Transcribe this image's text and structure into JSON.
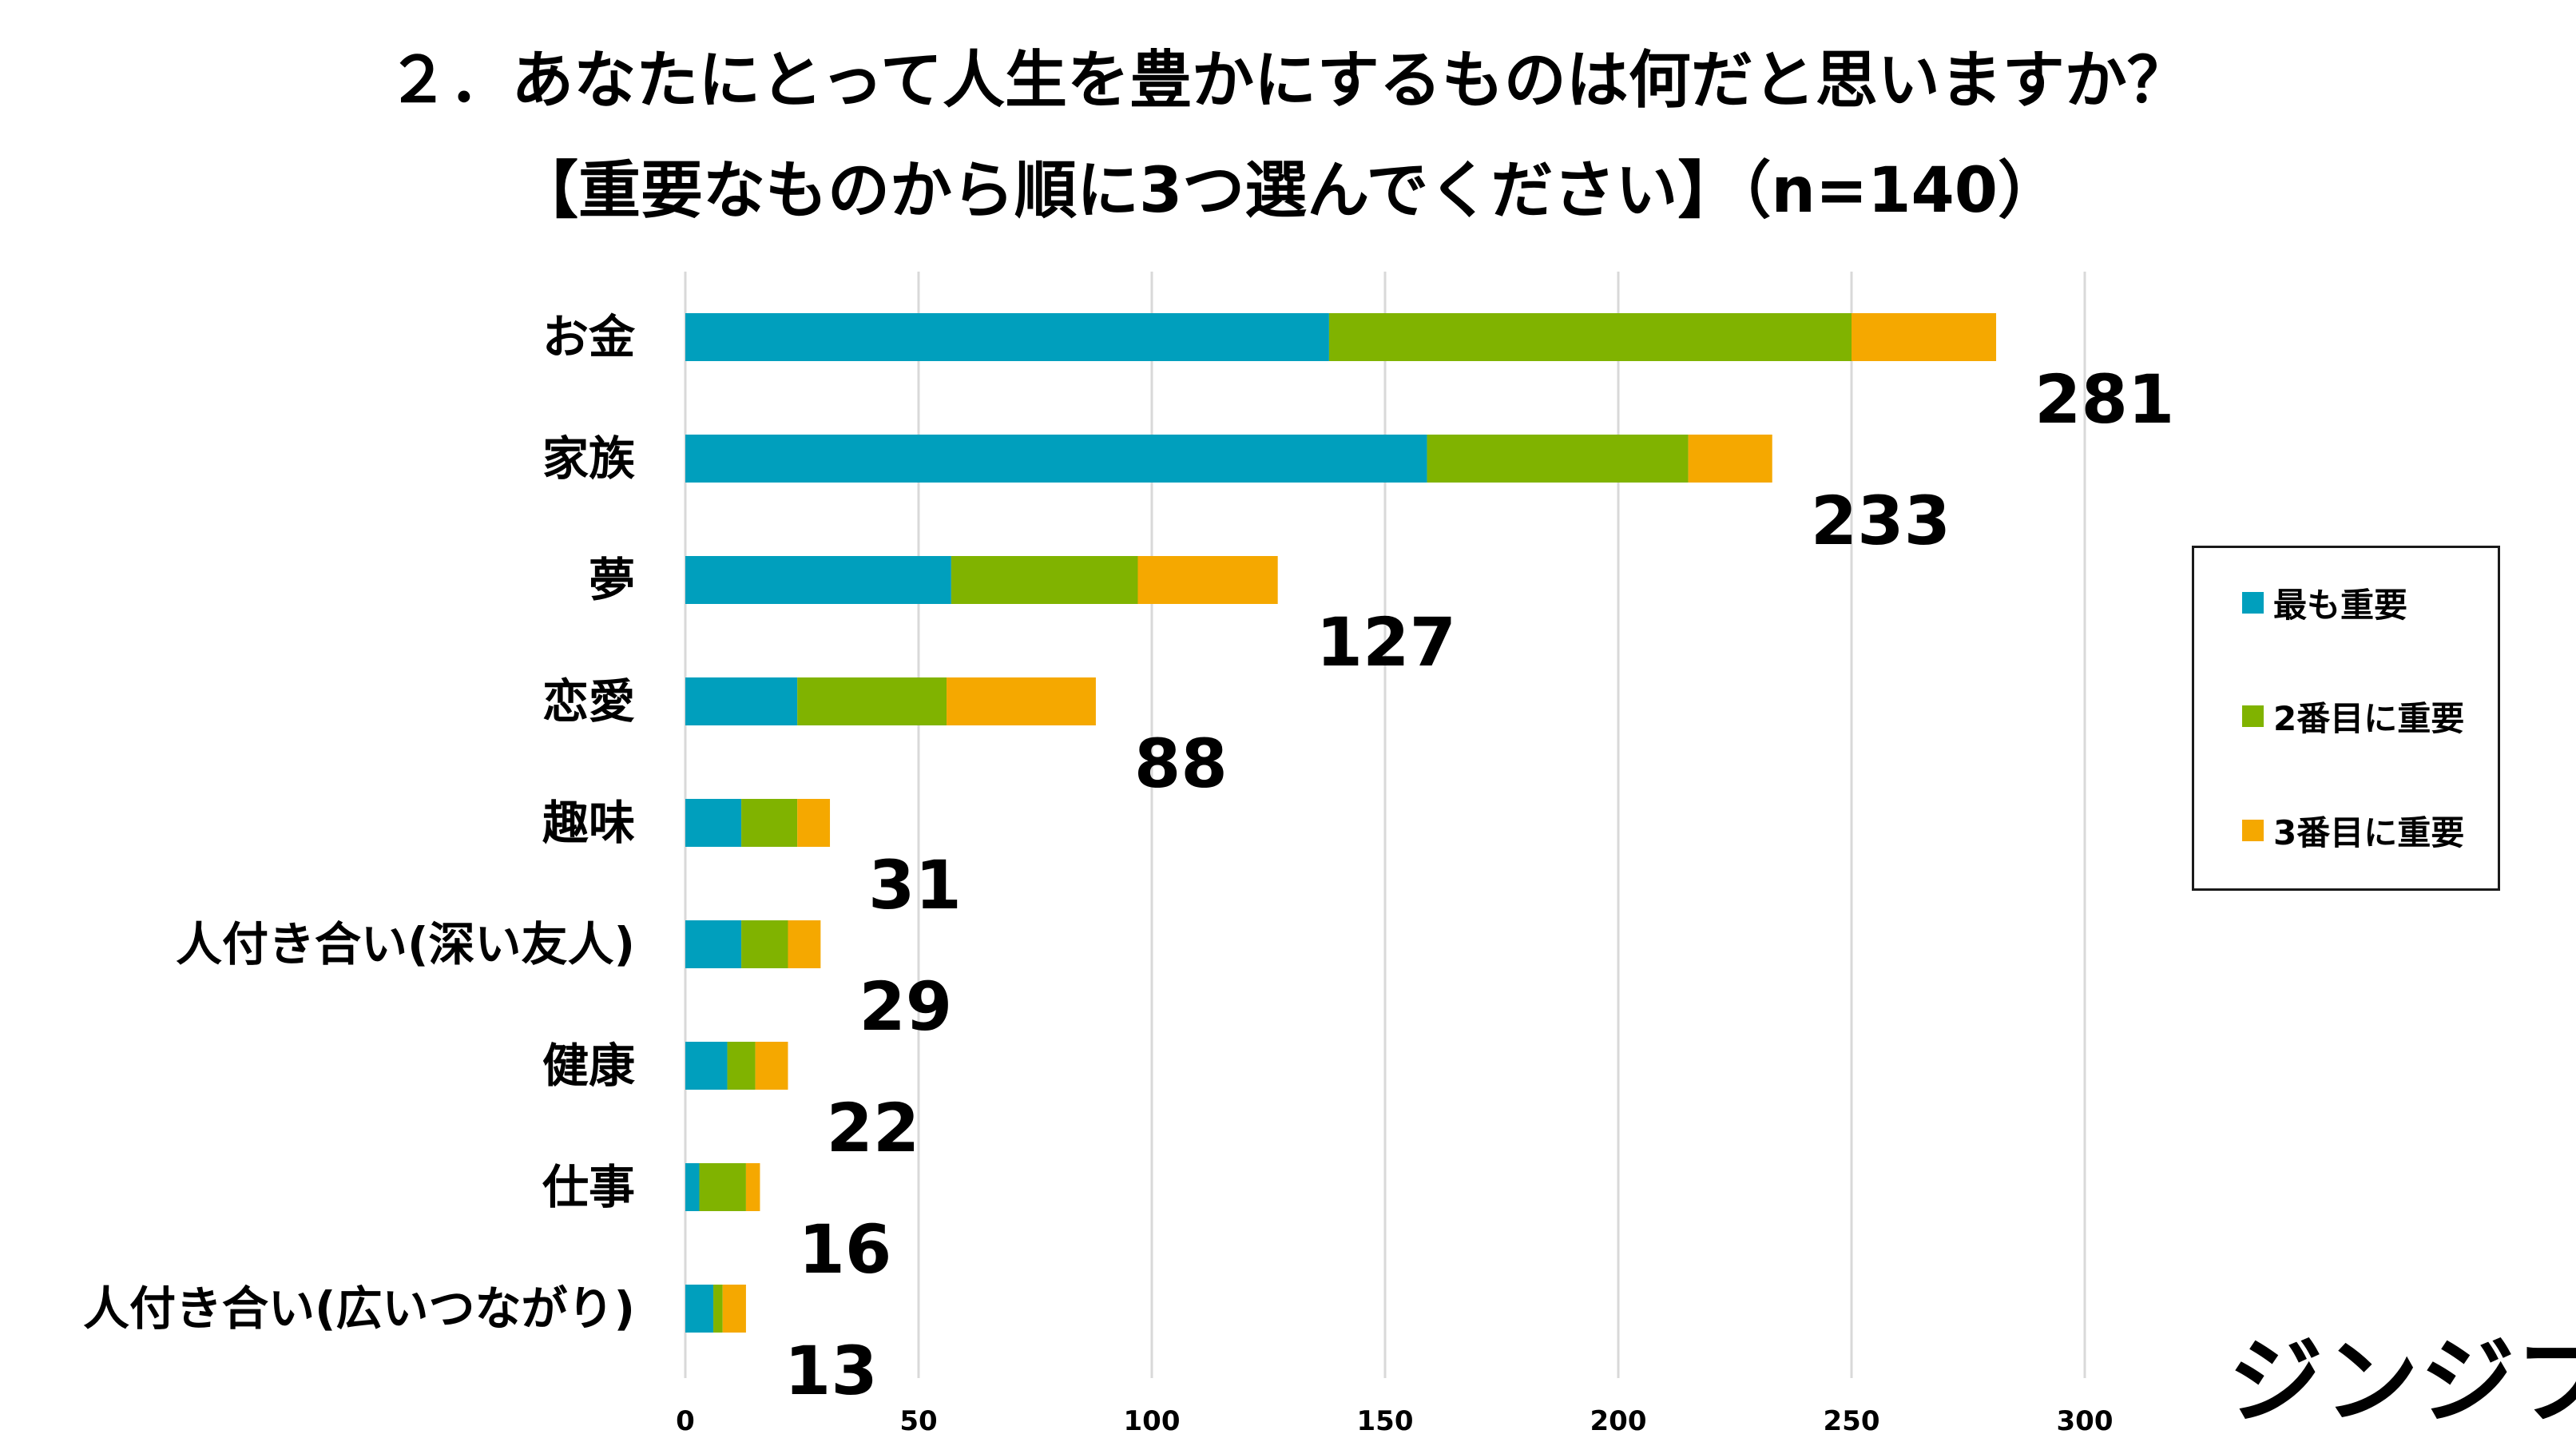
{
  "title_line1": "２．あなたにとって人生を豊かにするものは何だと思いますか？",
  "title_line2": "【重要なものから順に3つ選んでください】（n=140）",
  "logo_text": "ジンジブ",
  "chart_data": {
    "type": "bar",
    "orientation": "horizontal",
    "stacked": true,
    "categories": [
      "お金",
      "家族",
      "夢",
      "恋愛",
      "趣味",
      "人付き合い(深い友人)",
      "健康",
      "仕事",
      "人付き合い(広いつながり)"
    ],
    "series": [
      {
        "name": "最も重要",
        "color": "#009FBD",
        "values": [
          138,
          159,
          57,
          24,
          12,
          12,
          9,
          3,
          6
        ]
      },
      {
        "name": "2番目に重要",
        "color": "#80B300",
        "values": [
          112,
          56,
          40,
          32,
          12,
          10,
          6,
          10,
          2
        ]
      },
      {
        "name": "3番目に重要",
        "color": "#F5A800",
        "values": [
          31,
          18,
          30,
          32,
          7,
          7,
          7,
          3,
          5
        ]
      }
    ],
    "totals": [
      281,
      233,
      127,
      88,
      31,
      29,
      22,
      16,
      13
    ],
    "xlim": [
      0,
      300
    ],
    "xticks": [
      0,
      50,
      100,
      150,
      200,
      250,
      300
    ],
    "grid": "vertical",
    "legend_position": "right"
  }
}
